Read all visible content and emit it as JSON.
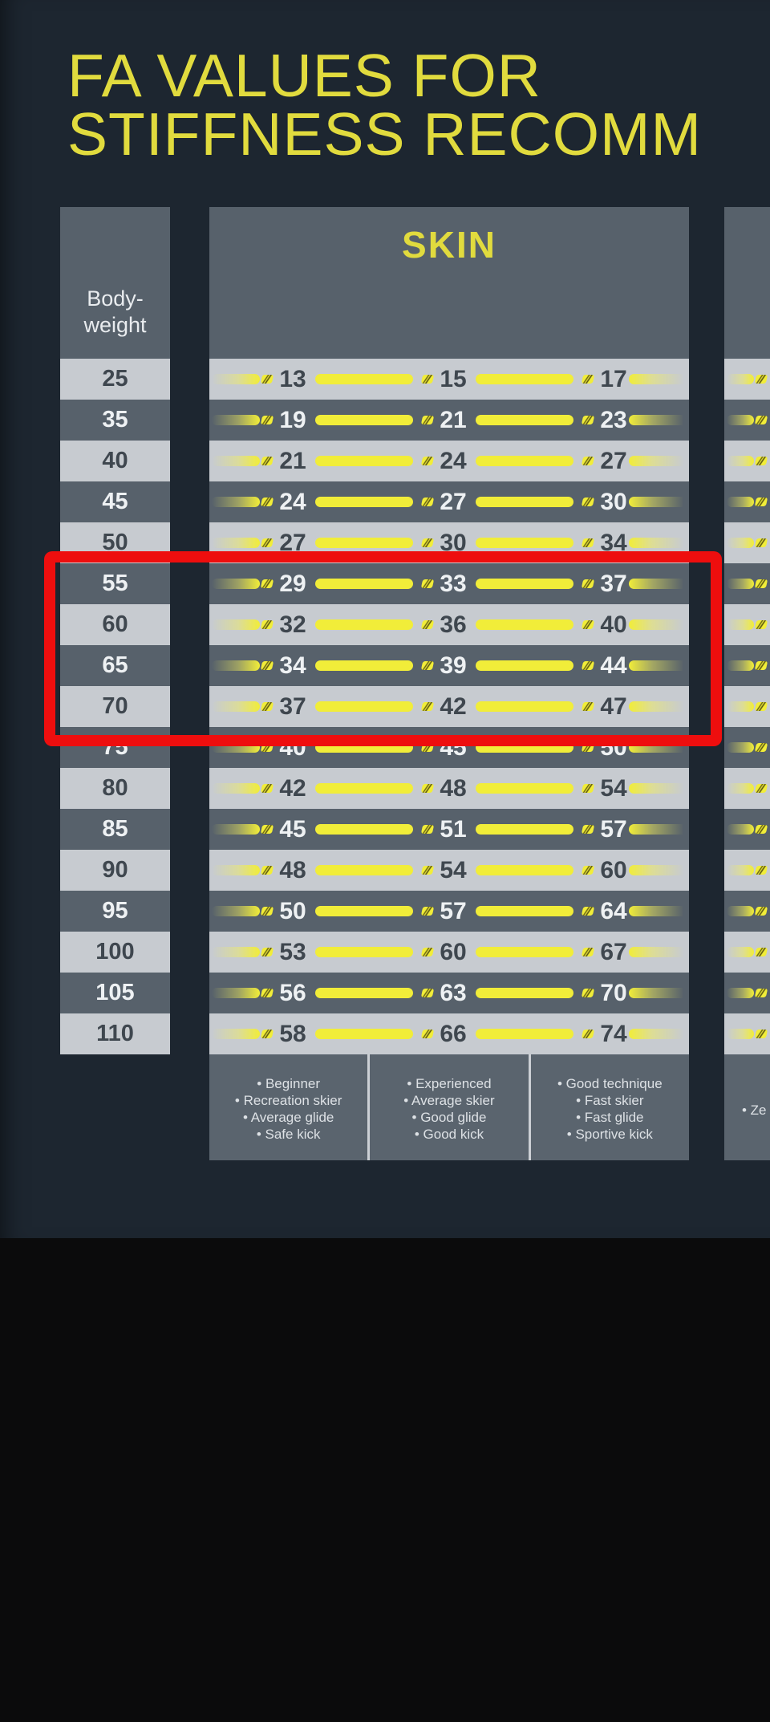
{
  "title": {
    "line1": "FA VALUES FOR",
    "line2": "STIFFNESS RECOMM"
  },
  "bodyweight_header": {
    "line1": "Body-",
    "line2": "weight"
  },
  "column_header": "SKIN",
  "rows": [
    {
      "weight": "25",
      "values": [
        "13",
        "15",
        "17"
      ]
    },
    {
      "weight": "35",
      "values": [
        "19",
        "21",
        "23"
      ]
    },
    {
      "weight": "40",
      "values": [
        "21",
        "24",
        "27"
      ]
    },
    {
      "weight": "45",
      "values": [
        "24",
        "27",
        "30"
      ]
    },
    {
      "weight": "50",
      "values": [
        "27",
        "30",
        "34"
      ]
    },
    {
      "weight": "55",
      "values": [
        "29",
        "33",
        "37"
      ]
    },
    {
      "weight": "60",
      "values": [
        "32",
        "36",
        "40"
      ]
    },
    {
      "weight": "65",
      "values": [
        "34",
        "39",
        "44"
      ]
    },
    {
      "weight": "70",
      "values": [
        "37",
        "42",
        "47"
      ]
    },
    {
      "weight": "75",
      "values": [
        "40",
        "45",
        "50"
      ]
    },
    {
      "weight": "80",
      "values": [
        "42",
        "48",
        "54"
      ]
    },
    {
      "weight": "85",
      "values": [
        "45",
        "51",
        "57"
      ]
    },
    {
      "weight": "90",
      "values": [
        "48",
        "54",
        "60"
      ]
    },
    {
      "weight": "95",
      "values": [
        "50",
        "57",
        "64"
      ]
    },
    {
      "weight": "100",
      "values": [
        "53",
        "60",
        "67"
      ]
    },
    {
      "weight": "105",
      "values": [
        "56",
        "63",
        "70"
      ]
    },
    {
      "weight": "110",
      "values": [
        "58",
        "66",
        "74"
      ]
    }
  ],
  "skill_levels": [
    {
      "lines": [
        "• Beginner",
        "• Recreation skier",
        "• Average glide",
        "• Safe kick"
      ]
    },
    {
      "lines": [
        "• Experienced",
        "• Average skier",
        "• Good glide",
        "• Good kick"
      ]
    },
    {
      "lines": [
        "• Good technique",
        "• Fast skier",
        "• Fast glide",
        "• Sportive kick"
      ]
    }
  ],
  "partial_column": {
    "footer_fragment": "• Ze"
  },
  "highlight": {
    "weights": [
      "55",
      "60",
      "65",
      "70"
    ],
    "color": "#ee0e0e"
  },
  "colors": {
    "accent_yellow": "#e1db3e",
    "bar_yellow": "#f1ed39",
    "highlight_red": "#ee0e0e",
    "row_light": "#c7cbd0",
    "row_dark": "#57616b",
    "panel_gray": "#5a646e",
    "background": "#1d2630",
    "black": "#0b0b0c"
  },
  "chart_data": {
    "type": "table",
    "title": "FA VALUES FOR STIFFNESS RECOMM",
    "column": "SKIN",
    "xlabel": "Body-weight",
    "categories": [
      25,
      35,
      40,
      45,
      50,
      55,
      60,
      65,
      70,
      75,
      80,
      85,
      90,
      95,
      100,
      105,
      110
    ],
    "series": [
      {
        "name": "Beginner / Recreation skier / Average glide / Safe kick",
        "values": [
          13,
          19,
          21,
          24,
          27,
          29,
          32,
          34,
          37,
          40,
          42,
          45,
          48,
          50,
          53,
          56,
          58
        ]
      },
      {
        "name": "Experienced / Average skier / Good glide / Good kick",
        "values": [
          15,
          21,
          24,
          27,
          30,
          33,
          36,
          39,
          42,
          45,
          48,
          51,
          54,
          57,
          60,
          63,
          66
        ]
      },
      {
        "name": "Good technique / Fast skier / Fast glide / Sportive kick",
        "values": [
          17,
          23,
          27,
          30,
          34,
          37,
          40,
          44,
          47,
          50,
          54,
          57,
          60,
          64,
          67,
          70,
          74
        ]
      }
    ],
    "highlighted_rows": [
      55,
      60,
      65,
      70
    ]
  }
}
